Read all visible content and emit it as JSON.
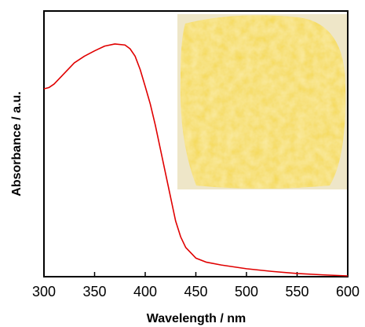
{
  "chart_data": {
    "type": "line",
    "x_label": "Wavelength / nm",
    "y_label": "Absorbance / a.u.",
    "x": [
      300,
      305,
      310,
      320,
      330,
      340,
      350,
      360,
      370,
      380,
      385,
      390,
      395,
      400,
      405,
      410,
      415,
      420,
      425,
      430,
      435,
      440,
      450,
      460,
      475,
      500,
      525,
      550,
      575,
      600
    ],
    "values": [
      0.707,
      0.712,
      0.725,
      0.765,
      0.805,
      0.83,
      0.85,
      0.868,
      0.876,
      0.872,
      0.858,
      0.83,
      0.78,
      0.716,
      0.65,
      0.57,
      0.48,
      0.39,
      0.3,
      0.21,
      0.15,
      0.11,
      0.07,
      0.055,
      0.044,
      0.03,
      0.02,
      0.012,
      0.007,
      0.003
    ],
    "color": "#e00000",
    "xlim": [
      300,
      600
    ],
    "xticks": [
      300,
      350,
      400,
      450,
      500,
      550,
      600
    ],
    "ylim": [
      0,
      1
    ]
  }
}
